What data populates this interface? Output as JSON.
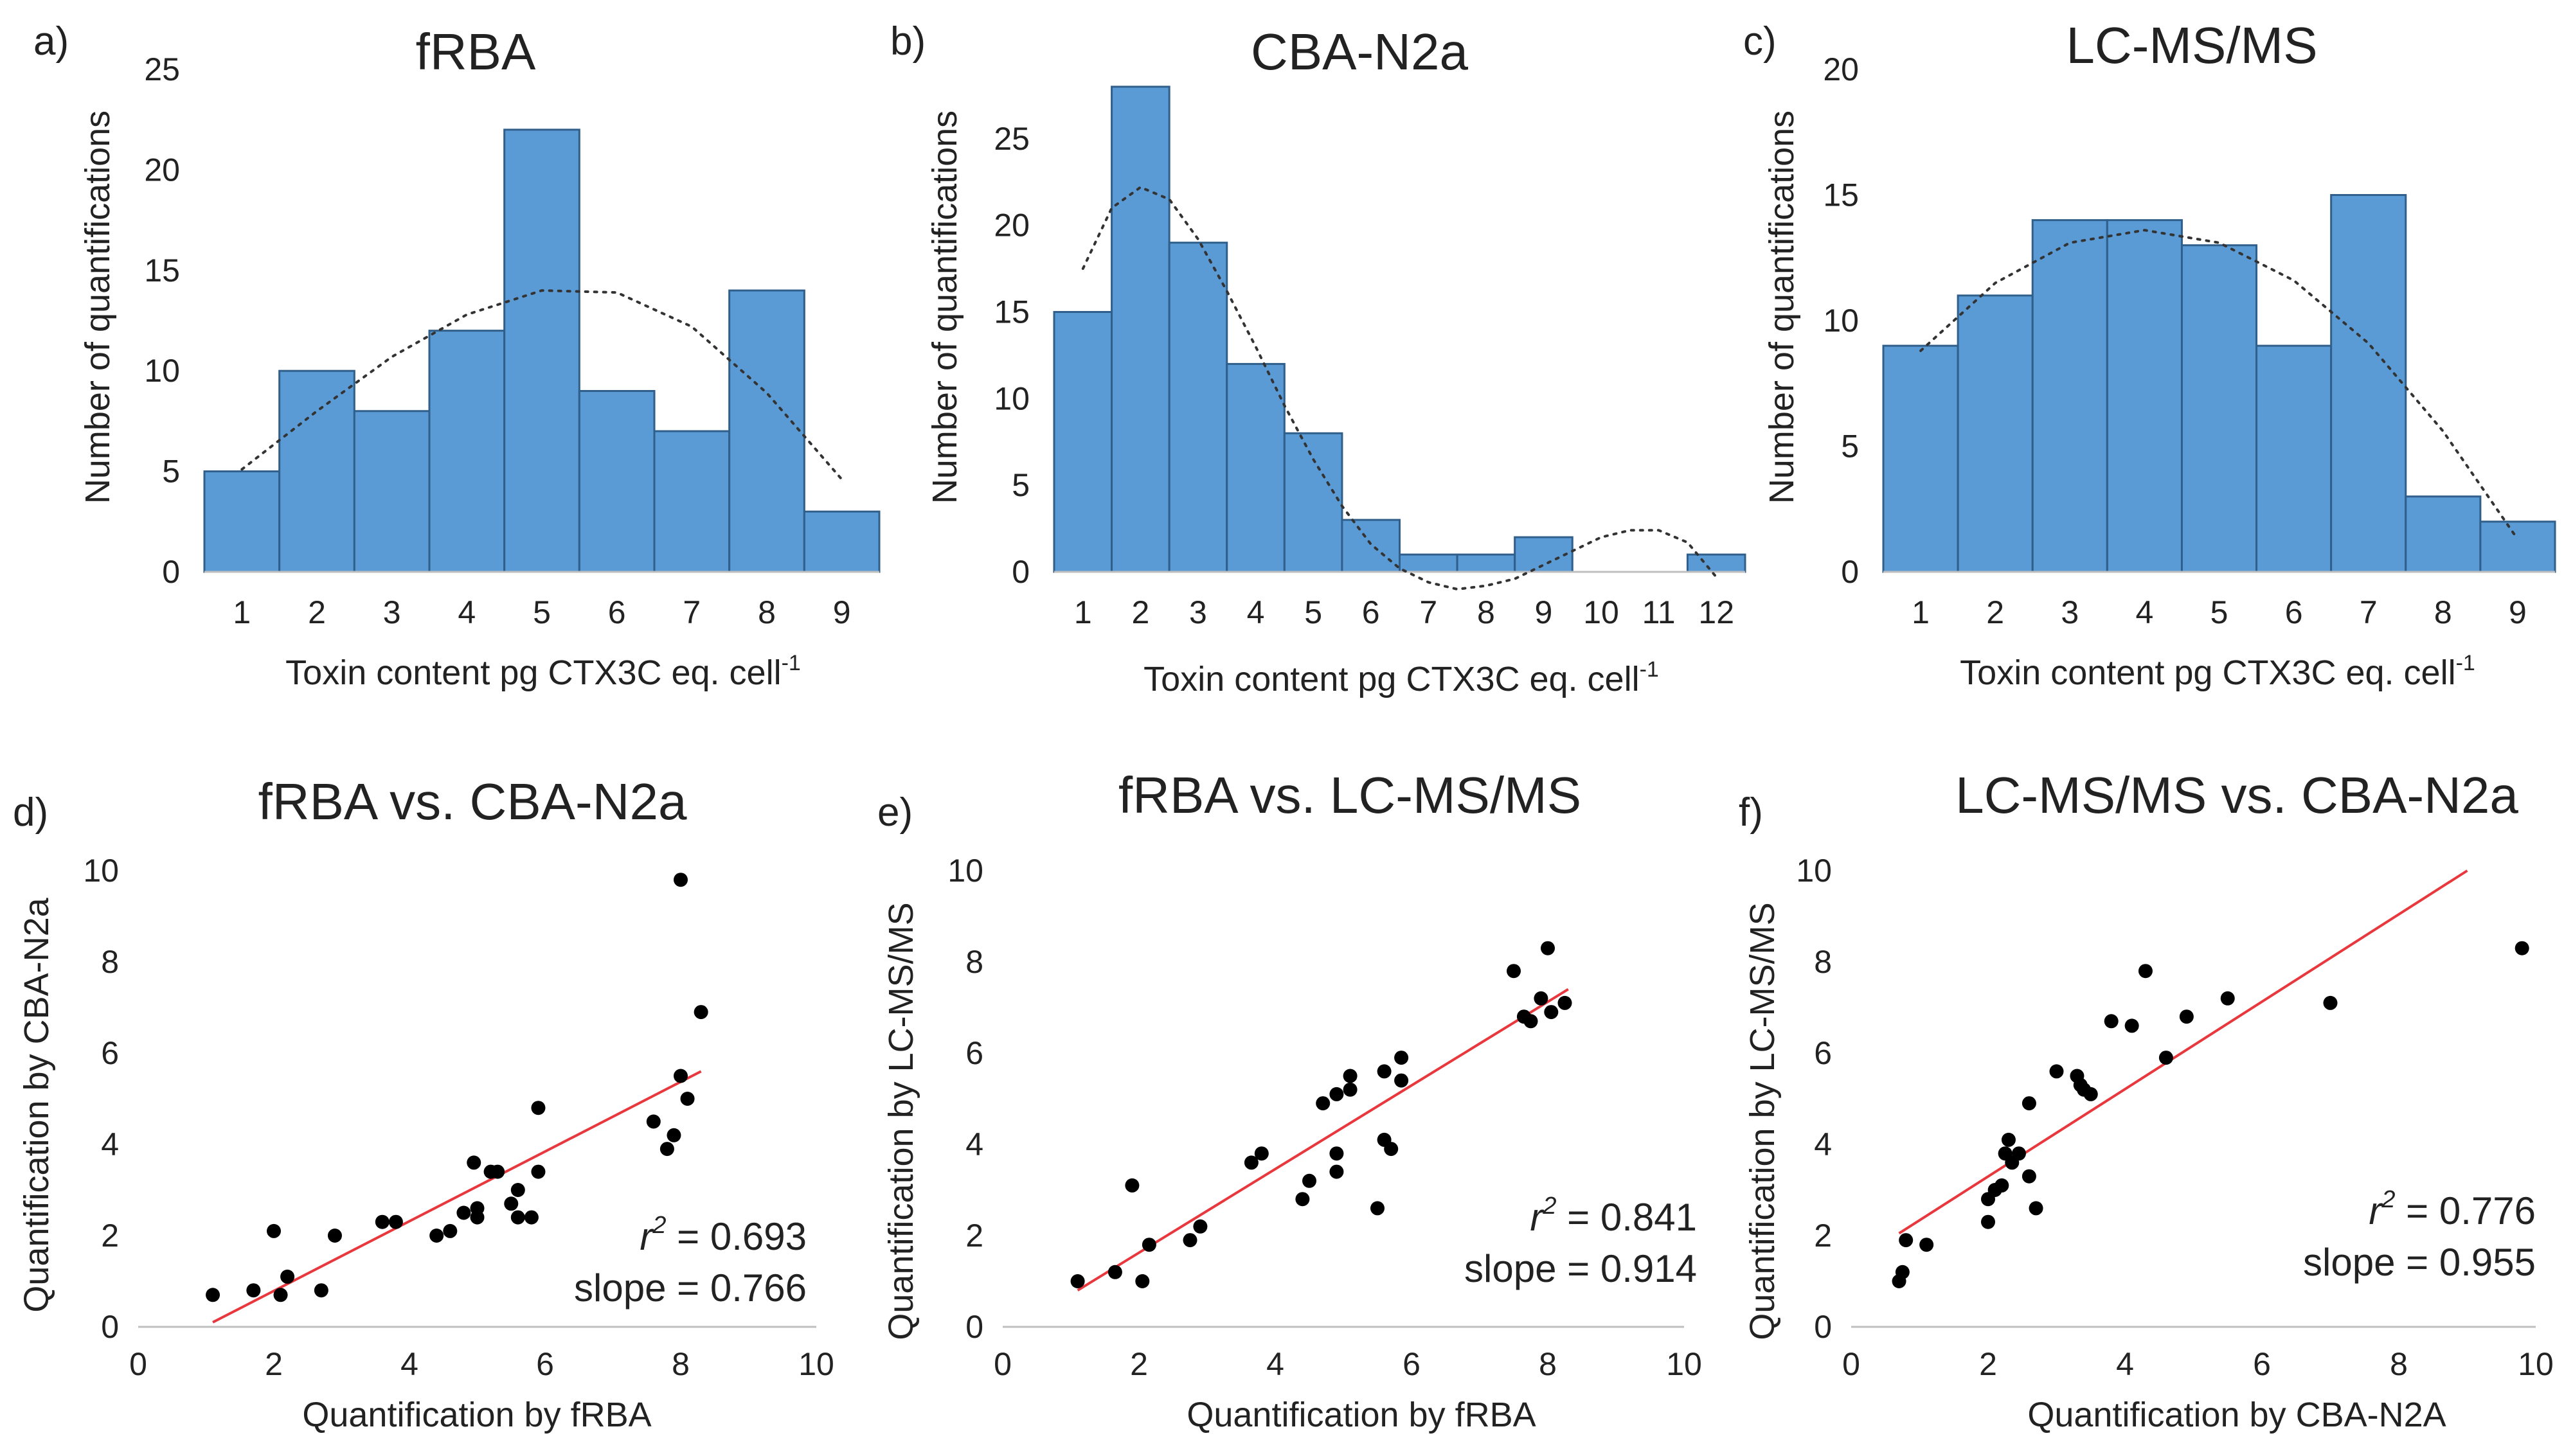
{
  "chart_data": [
    {
      "type": "bar",
      "panel": "a)",
      "title": "fRBA",
      "categories": [
        "1",
        "2",
        "3",
        "4",
        "5",
        "6",
        "7",
        "8",
        "9"
      ],
      "values": [
        5,
        10,
        8,
        12,
        22,
        9,
        7,
        14,
        3
      ],
      "yticks": [
        "0",
        "5",
        "10",
        "15",
        "20",
        "25"
      ],
      "ylim": [
        0,
        25
      ],
      "ylabel": "Number of quantifications",
      "xlabel_main": "Toxin content pg CTX3C eq. cell",
      "xlabel_sup": "-1",
      "trend": {
        "type": "polynomial",
        "x": [
          1,
          2,
          3,
          4,
          5,
          6,
          7,
          8,
          9
        ],
        "y": [
          5.1,
          8.0,
          10.7,
          12.8,
          14.0,
          13.9,
          12.2,
          8.9,
          4.6
        ]
      }
    },
    {
      "type": "bar",
      "panel": "b)",
      "title": "CBA-N2a",
      "categories": [
        "1",
        "2",
        "3",
        "4",
        "5",
        "6",
        "7",
        "8",
        "9",
        "10",
        "11",
        "12"
      ],
      "values": [
        15,
        28,
        19,
        12,
        8,
        3,
        1,
        1,
        2,
        0,
        0,
        1
      ],
      "yticks": [
        "0",
        "5",
        "10",
        "15",
        "20",
        "25"
      ],
      "ylim": [
        0,
        29
      ],
      "ylabel": "Number of quantifications",
      "xlabel_main": "Toxin content pg CTX3C eq. cell",
      "xlabel_sup": "-1",
      "trend": {
        "type": "polynomial",
        "x": [
          1,
          1.5,
          2,
          2.5,
          3,
          3.5,
          4,
          4.5,
          5,
          5.5,
          6,
          6.5,
          7,
          7.5,
          8,
          8.5,
          9,
          9.5,
          10,
          10.5,
          11,
          11.5,
          12
        ],
        "y": [
          17.5,
          21.0,
          22.2,
          21.5,
          19.2,
          16.2,
          13.0,
          9.6,
          6.5,
          3.8,
          1.6,
          0.2,
          -0.6,
          -1.0,
          -0.8,
          -0.4,
          0.4,
          1.2,
          2.0,
          2.4,
          2.4,
          1.7,
          -0.3
        ]
      }
    },
    {
      "type": "bar",
      "panel": "c)",
      "title": "LC-MS/MS",
      "categories": [
        "1",
        "2",
        "3",
        "4",
        "5",
        "6",
        "7",
        "8",
        "9"
      ],
      "values": [
        9,
        11,
        14,
        14,
        13,
        9,
        15,
        3,
        2
      ],
      "yticks": [
        "0",
        "5",
        "10",
        "15",
        "20"
      ],
      "ylim": [
        0,
        20
      ],
      "ylabel": "Number of quantifications",
      "xlabel_main": "Toxin content pg CTX3C eq. cell",
      "xlabel_sup": "-1",
      "trend": {
        "type": "polynomial",
        "x": [
          1,
          2,
          3,
          4,
          5,
          6,
          7,
          8,
          9
        ],
        "y": [
          8.8,
          11.5,
          13.1,
          13.6,
          13.1,
          11.6,
          9.1,
          5.6,
          1.3
        ]
      }
    },
    {
      "type": "scatter",
      "panel": "d)",
      "title": "fRBA vs. CBA-N2a",
      "xlabel": "Quantification by fRBA",
      "ylabel": "Quantification by CBA-N2a",
      "xlim": [
        0,
        10
      ],
      "ylim": [
        0,
        10
      ],
      "xticks": [
        "0",
        "2",
        "4",
        "6",
        "8",
        "10"
      ],
      "yticks": [
        "0",
        "2",
        "4",
        "6",
        "8",
        "10"
      ],
      "points": [
        [
          1.1,
          0.7
        ],
        [
          1.7,
          0.8
        ],
        [
          2.0,
          2.1
        ],
        [
          2.1,
          0.7
        ],
        [
          2.2,
          1.1
        ],
        [
          2.7,
          0.8
        ],
        [
          2.9,
          2.0
        ],
        [
          3.6,
          2.3
        ],
        [
          3.8,
          2.3
        ],
        [
          4.4,
          2.0
        ],
        [
          4.6,
          2.1
        ],
        [
          4.8,
          2.5
        ],
        [
          5.0,
          2.4
        ],
        [
          5.0,
          2.6
        ],
        [
          4.95,
          3.6
        ],
        [
          5.2,
          3.4
        ],
        [
          5.3,
          3.4
        ],
        [
          5.5,
          2.7
        ],
        [
          5.6,
          3.0
        ],
        [
          5.6,
          2.4
        ],
        [
          5.8,
          2.4
        ],
        [
          5.9,
          3.4
        ],
        [
          5.9,
          4.8
        ],
        [
          7.6,
          4.5
        ],
        [
          7.8,
          3.9
        ],
        [
          7.9,
          4.2
        ],
        [
          8.0,
          5.5
        ],
        [
          8.0,
          9.8
        ],
        [
          8.1,
          5.0
        ],
        [
          8.3,
          6.9
        ]
      ],
      "fit": {
        "x": [
          1.1,
          8.3
        ],
        "y": [
          0.1,
          5.6
        ]
      },
      "r2_label": "r",
      "r2_sup": "2",
      "r2_value": " = 0.693",
      "slope_text": "slope = 0.766"
    },
    {
      "type": "scatter",
      "panel": "e)",
      "title": "fRBA vs. LC-MS/MS",
      "xlabel": "Quantification by fRBA",
      "ylabel": "Quantification by LC-MS/MS",
      "xlim": [
        0,
        10
      ],
      "ylim": [
        0,
        10
      ],
      "xticks": [
        "0",
        "2",
        "4",
        "6",
        "8",
        "10"
      ],
      "yticks": [
        "0",
        "2",
        "4",
        "6",
        "8",
        "10"
      ],
      "points": [
        [
          1.1,
          1.0
        ],
        [
          1.65,
          1.2
        ],
        [
          1.9,
          3.1
        ],
        [
          2.05,
          1.0
        ],
        [
          2.15,
          1.8
        ],
        [
          2.75,
          1.9
        ],
        [
          2.9,
          2.2
        ],
        [
          3.65,
          3.6
        ],
        [
          3.8,
          3.8
        ],
        [
          4.4,
          2.8
        ],
        [
          4.5,
          3.2
        ],
        [
          4.7,
          4.9
        ],
        [
          4.9,
          5.1
        ],
        [
          4.9,
          3.8
        ],
        [
          4.9,
          3.4
        ],
        [
          5.1,
          5.5
        ],
        [
          5.1,
          5.2
        ],
        [
          5.5,
          2.6
        ],
        [
          5.6,
          5.6
        ],
        [
          5.6,
          4.1
        ],
        [
          5.7,
          3.9
        ],
        [
          5.85,
          5.4
        ],
        [
          5.85,
          5.9
        ],
        [
          7.5,
          7.8
        ],
        [
          7.65,
          6.8
        ],
        [
          7.75,
          6.7
        ],
        [
          7.9,
          7.2
        ],
        [
          8.0,
          8.3
        ],
        [
          8.05,
          6.9
        ],
        [
          8.25,
          7.1
        ]
      ],
      "fit": {
        "x": [
          1.1,
          8.3
        ],
        "y": [
          0.8,
          7.4
        ]
      },
      "r2_label": "r",
      "r2_sup": "2",
      "r2_value": " = 0.841",
      "slope_text": "slope = 0.914"
    },
    {
      "type": "scatter",
      "panel": "f)",
      "title": "LC-MS/MS vs. CBA-N2a",
      "xlabel": "Quantification by CBA-N2A",
      "ylabel": "Quantification by LC-MS/MS",
      "xlim": [
        0,
        10
      ],
      "ylim": [
        0,
        10
      ],
      "xticks": [
        "0",
        "2",
        "4",
        "6",
        "8",
        "10"
      ],
      "yticks": [
        "0",
        "2",
        "4",
        "6",
        "8",
        "10"
      ],
      "points": [
        [
          0.7,
          1.0
        ],
        [
          0.75,
          1.2
        ],
        [
          0.8,
          1.9
        ],
        [
          1.1,
          1.8
        ],
        [
          2.0,
          2.3
        ],
        [
          2.0,
          2.8
        ],
        [
          2.1,
          3.0
        ],
        [
          2.2,
          3.1
        ],
        [
          2.25,
          3.8
        ],
        [
          2.3,
          4.1
        ],
        [
          2.35,
          3.6
        ],
        [
          2.45,
          3.8
        ],
        [
          2.6,
          4.9
        ],
        [
          2.6,
          3.3
        ],
        [
          2.7,
          2.6
        ],
        [
          3.0,
          5.6
        ],
        [
          3.3,
          5.5
        ],
        [
          3.35,
          5.3
        ],
        [
          3.4,
          5.2
        ],
        [
          3.5,
          5.1
        ],
        [
          3.8,
          6.7
        ],
        [
          4.1,
          6.6
        ],
        [
          4.3,
          7.8
        ],
        [
          4.6,
          5.9
        ],
        [
          4.9,
          6.8
        ],
        [
          5.5,
          7.2
        ],
        [
          7.0,
          7.1
        ],
        [
          9.8,
          8.3
        ]
      ],
      "fit": {
        "x": [
          0.7,
          9.0
        ],
        "y": [
          2.05,
          10.0
        ]
      },
      "r2_label": "r",
      "r2_sup": "2",
      "r2_value": " = 0.776",
      "slope_text": "slope = 0.955"
    }
  ]
}
